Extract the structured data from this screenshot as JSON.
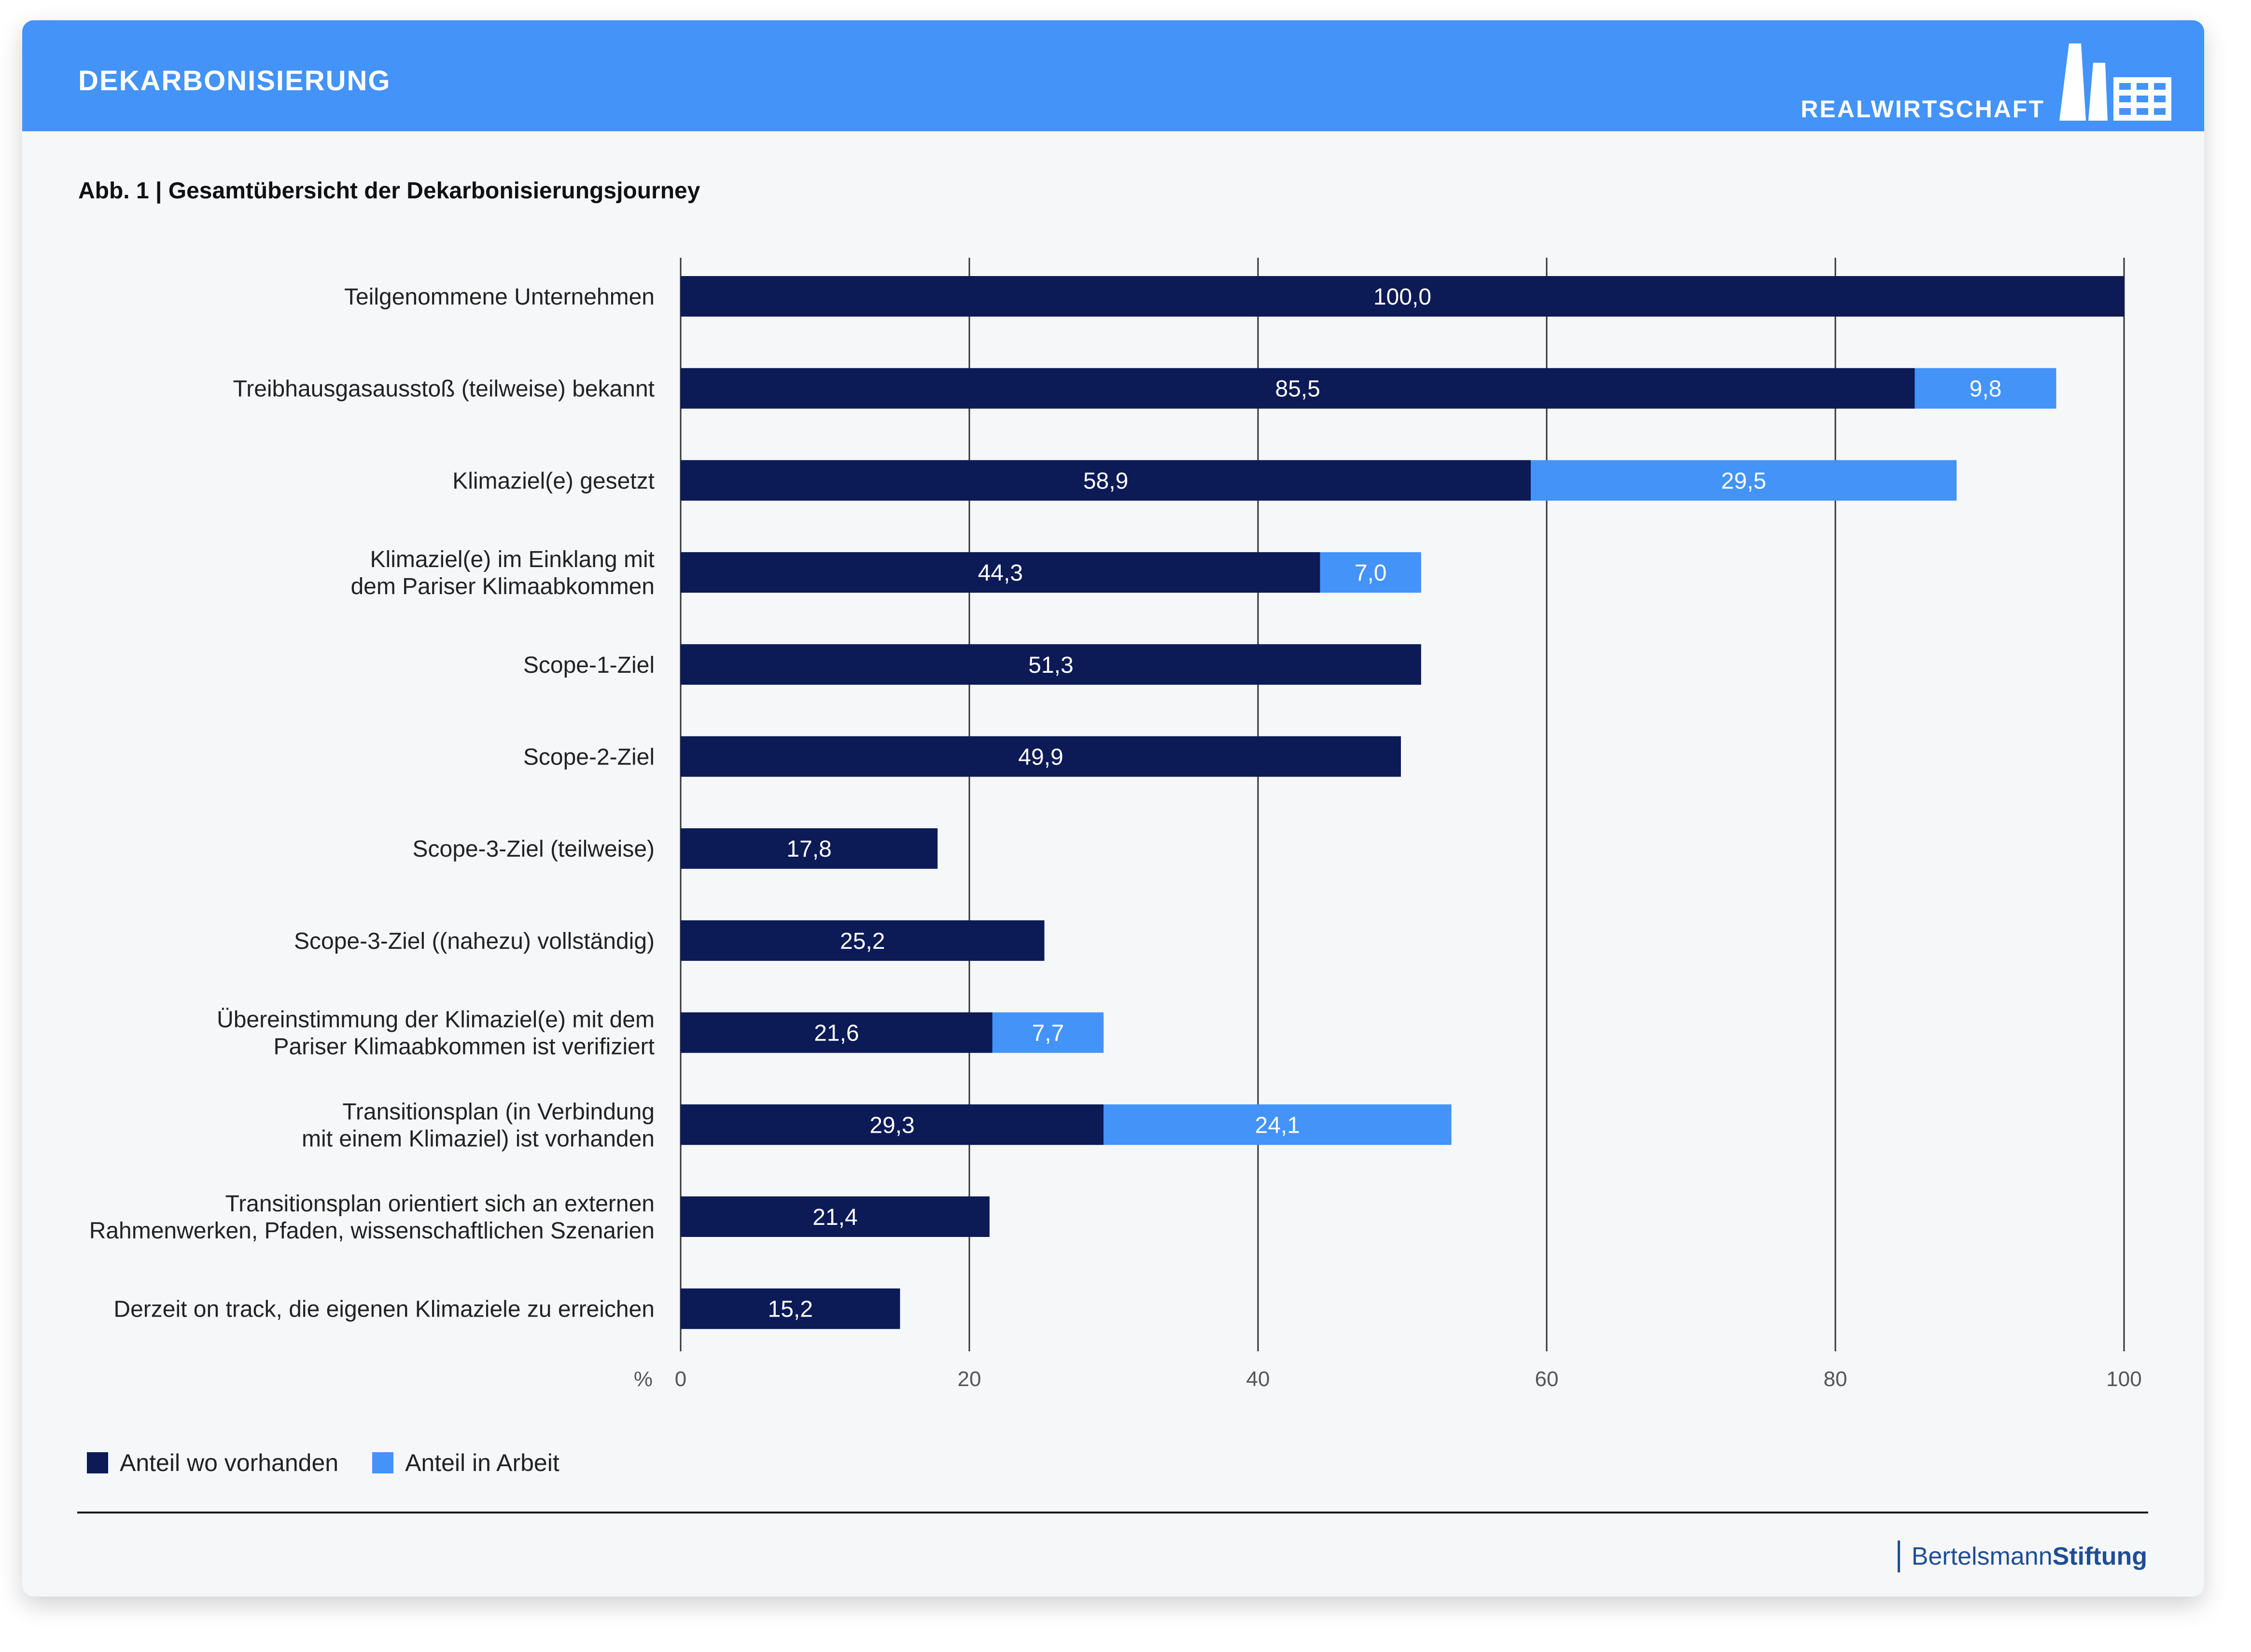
{
  "header": {
    "title": "DEKARBONISIERUNG",
    "section": "REALWIRTSCHAFT"
  },
  "figure": {
    "title": "Abb. 1 | Gesamtübersicht der Dekarbonisierungsjourney"
  },
  "colors": {
    "banner": "#4393f8",
    "series_existing": "#0c1a56",
    "series_in_progress": "#4393f8",
    "grid": "#333333",
    "brand": "#1f4e96"
  },
  "chart_data": {
    "type": "bar",
    "orientation": "horizontal",
    "stacked": true,
    "categories": [
      [
        "Teilgenommene Unternehmen"
      ],
      [
        "Treibhausgasausstoß (teilweise) bekannt"
      ],
      [
        "Klimaziel(e) gesetzt"
      ],
      [
        "Klimaziel(e) im Einklang mit",
        "dem Pariser Klimaabkommen"
      ],
      [
        "Scope-1-Ziel"
      ],
      [
        "Scope-2-Ziel"
      ],
      [
        "Scope-3-Ziel (teilweise)"
      ],
      [
        "Scope-3-Ziel ((nahezu) vollständig)"
      ],
      [
        "Übereinstimmung der Klimaziel(e) mit dem",
        "Pariser Klimaabkommen ist verifiziert"
      ],
      [
        "Transitionsplan (in Verbindung",
        "mit einem Klimaziel) ist vorhanden"
      ],
      [
        "Transitionsplan orientiert sich an externen",
        "Rahmenwerken, Pfaden, wissenschaftlichen Szenarien"
      ],
      [
        "Derzeit on track, die eigenen Klimaziele zu erreichen"
      ]
    ],
    "series": [
      {
        "name": "Anteil wo vorhanden",
        "values": [
          100.0,
          85.5,
          58.9,
          44.3,
          51.3,
          49.9,
          17.8,
          25.2,
          21.6,
          29.3,
          21.4,
          15.2
        ],
        "labels": [
          "100,0",
          "85,5",
          "58,9",
          "44,3",
          "51,3",
          "49,9",
          "17,8",
          "25,2",
          "21,6",
          "29,3",
          "21,4",
          "15,2"
        ]
      },
      {
        "name": "Anteil in Arbeit",
        "values": [
          null,
          9.8,
          29.5,
          7.0,
          null,
          null,
          null,
          null,
          7.7,
          24.1,
          null,
          null
        ],
        "labels": [
          null,
          "9,8",
          "29,5",
          "7,0",
          null,
          null,
          null,
          null,
          "7,7",
          "24,1",
          null,
          null
        ]
      }
    ],
    "xlim": [
      0,
      100
    ],
    "x_ticks": [
      0,
      20,
      40,
      60,
      80,
      100
    ],
    "x_tick_labels": [
      "0",
      "20",
      "40",
      "60",
      "80",
      "100"
    ],
    "x_unit": "%",
    "grid": "vertical",
    "legend_position": "bottom-left"
  },
  "legend": {
    "existing": "Anteil wo vorhanden",
    "in_progress": "Anteil in Arbeit"
  },
  "footer": {
    "brand_regular": "Bertelsmann",
    "brand_bold": "Stiftung"
  }
}
